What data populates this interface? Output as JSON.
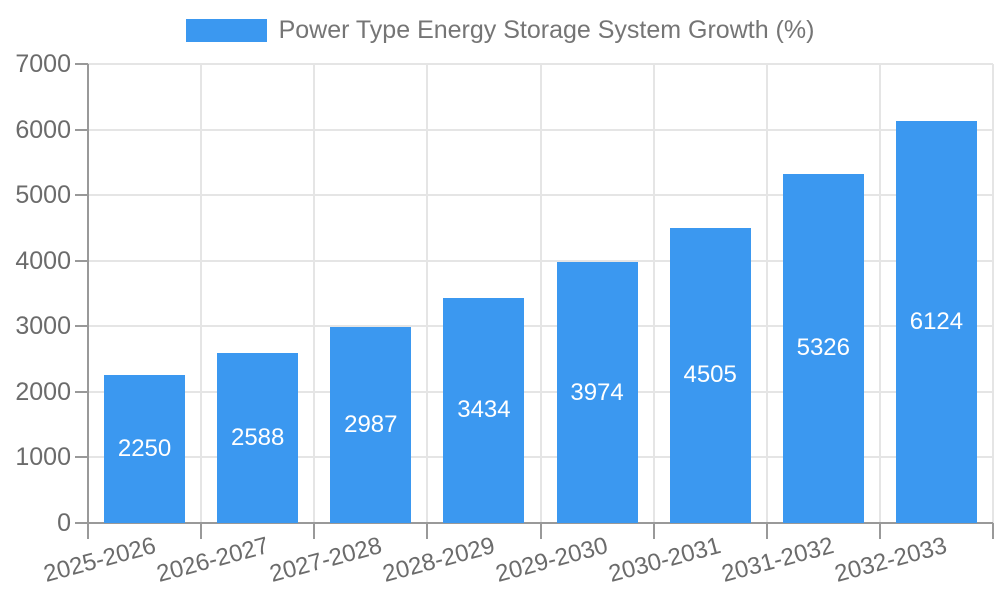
{
  "chart_data": {
    "type": "bar",
    "title": "Power Type Energy Storage System Growth (%)",
    "legend": [
      "Power Type Energy Storage System Growth (%)"
    ],
    "legend_position": "top",
    "categories": [
      "2025-2026",
      "2026-2027",
      "2027-2028",
      "2028-2029",
      "2029-2030",
      "2030-2031",
      "2031-2032",
      "2032-2033"
    ],
    "values": [
      2250,
      2588,
      2987,
      3434,
      3974,
      4505,
      5326,
      6124
    ],
    "bar_value_labels": [
      "2250",
      "2588",
      "2987",
      "3434",
      "3974",
      "4505",
      "5326",
      "6124"
    ],
    "xlabel": "",
    "ylabel": "",
    "ylim": [
      0,
      7000
    ],
    "yticks": [
      0,
      1000,
      2000,
      3000,
      4000,
      5000,
      6000,
      7000
    ],
    "grid": true,
    "x_label_rotation_deg": -15,
    "colors": {
      "bar": "#3B98F0",
      "axis_line": "#999999",
      "grid_line": "#e5e5e5",
      "tick_label": "#6b6b6b",
      "legend_text": "#757575",
      "bar_value_label": "#ffffff",
      "background": "#ffffff"
    }
  }
}
